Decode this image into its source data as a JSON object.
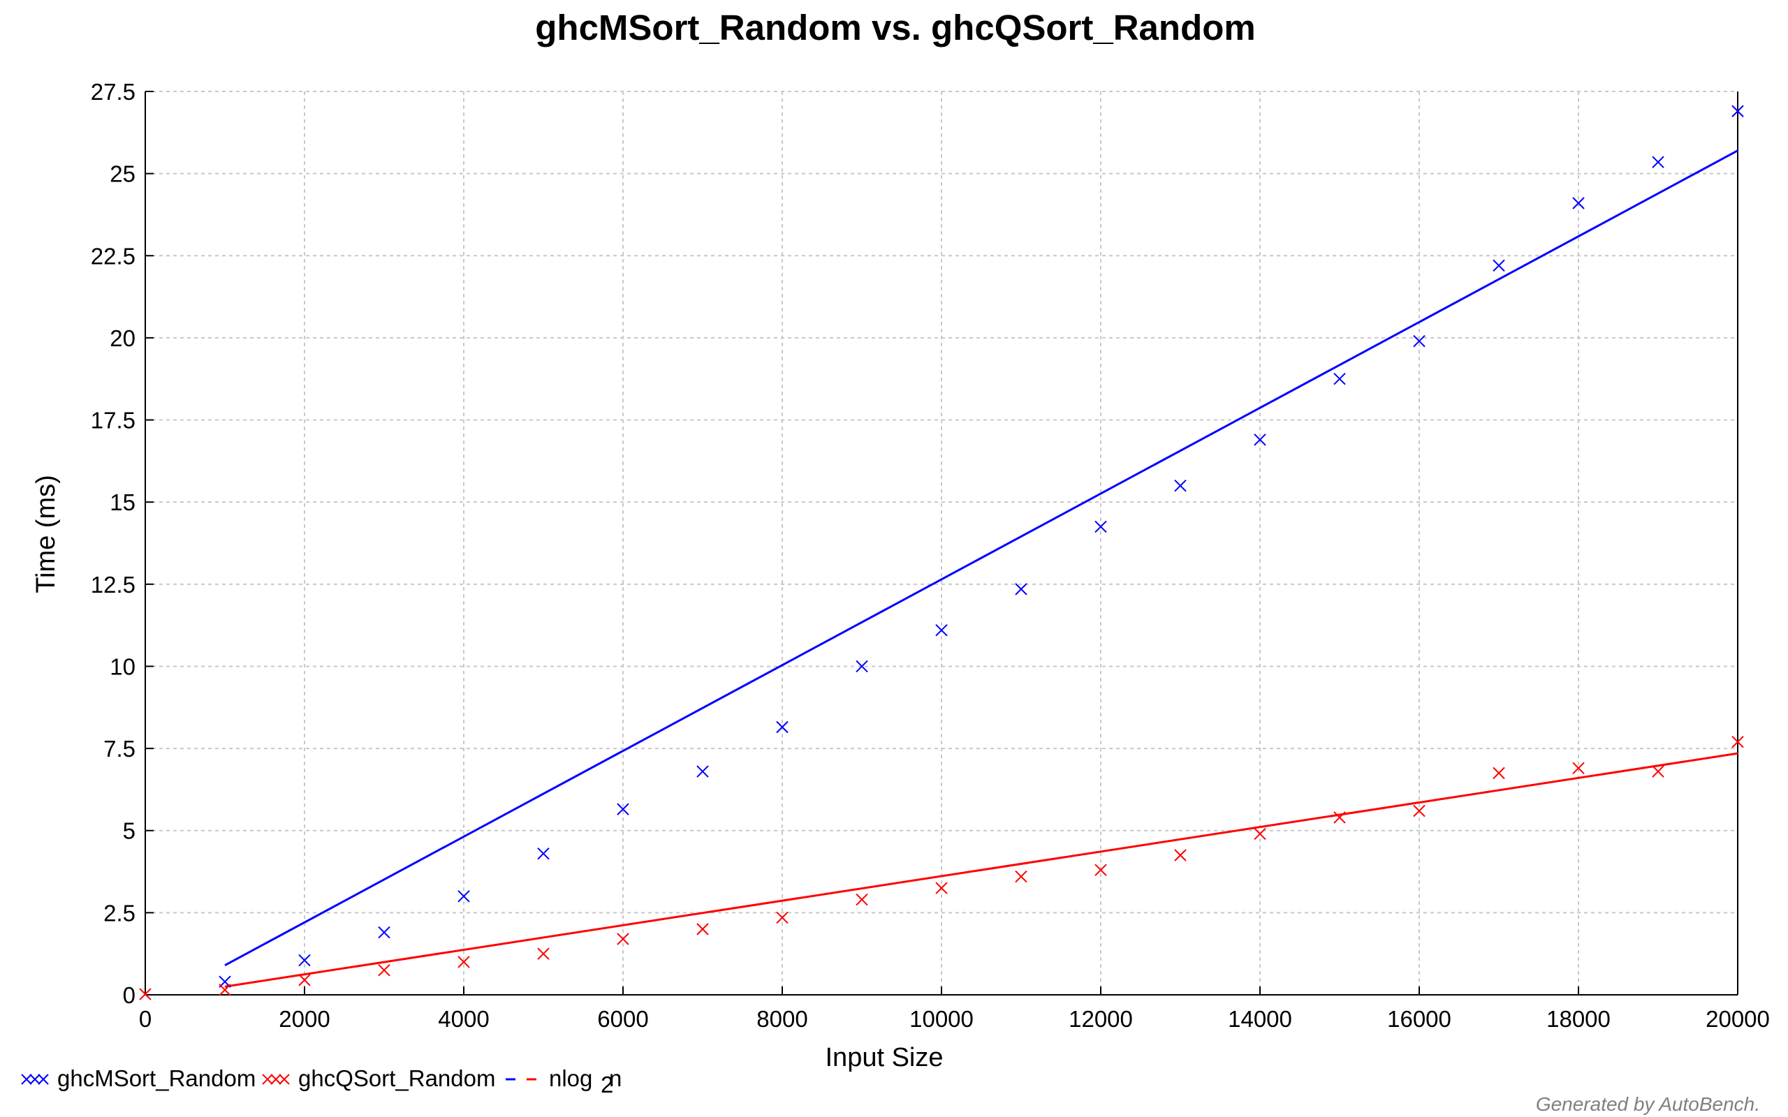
{
  "chart_data": {
    "type": "scatter",
    "title": "ghcMSort_Random vs. ghcQSort_Random",
    "xlabel": "Input Size",
    "ylabel": "Time (ms)",
    "xlim": [
      0,
      20000
    ],
    "ylim": [
      0,
      27.5
    ],
    "xticks": [
      0,
      2000,
      4000,
      6000,
      8000,
      10000,
      12000,
      14000,
      16000,
      18000,
      20000
    ],
    "xtick_labels": [
      "0",
      "2000",
      "4000",
      "6000",
      "8000",
      "10000",
      "12000",
      "14000",
      "16000",
      "18000",
      "20000"
    ],
    "yticks": [
      0,
      2.5,
      5,
      7.5,
      10,
      12.5,
      15,
      17.5,
      20,
      22.5,
      25,
      27.5
    ],
    "ytick_labels": [
      "0",
      "2.5",
      "5",
      "7.5",
      "10",
      "12.5",
      "15",
      "17.5",
      "20",
      "22.5",
      "25",
      "27.5"
    ],
    "grid": true,
    "legend_position": "bottom-left",
    "series": [
      {
        "name": "ghcMSort_Random",
        "color": "#0000ff",
        "marker": "x",
        "x": [
          1000,
          2000,
          3000,
          4000,
          5000,
          6000,
          7000,
          8000,
          9000,
          10000,
          11000,
          12000,
          13000,
          14000,
          15000,
          16000,
          17000,
          18000,
          19000,
          20000
        ],
        "y": [
          0.4,
          1.05,
          1.9,
          3.0,
          4.3,
          5.65,
          6.8,
          8.15,
          10.0,
          11.1,
          12.35,
          14.25,
          15.5,
          16.9,
          18.75,
          19.9,
          22.2,
          24.1,
          25.35,
          26.9
        ]
      },
      {
        "name": "ghcQSort_Random",
        "color": "#ff0000",
        "marker": "x",
        "x": [
          0,
          1000,
          2000,
          3000,
          4000,
          5000,
          6000,
          7000,
          8000,
          9000,
          10000,
          11000,
          12000,
          13000,
          14000,
          15000,
          16000,
          17000,
          18000,
          19000,
          20000
        ],
        "y": [
          0.02,
          0.15,
          0.45,
          0.75,
          1.0,
          1.25,
          1.7,
          2.0,
          2.35,
          2.9,
          3.25,
          3.6,
          3.8,
          4.25,
          4.9,
          5.4,
          5.6,
          6.75,
          6.9,
          6.8,
          7.7
        ]
      }
    ],
    "fits": [
      {
        "name": "nlog2n",
        "series": "ghcMSort_Random",
        "color": "#0000ff",
        "x": [
          1000,
          20000
        ],
        "y": [
          0.9,
          25.7
        ]
      },
      {
        "name": "nlog2n",
        "series": "ghcQSort_Random",
        "color": "#ff0000",
        "x": [
          1000,
          20000
        ],
        "y": [
          0.25,
          7.35
        ]
      }
    ],
    "legend": [
      {
        "label": "ghcMSort_Random",
        "kind": "marker",
        "color": "#0000ff"
      },
      {
        "label": "ghcQSort_Random",
        "kind": "marker",
        "color": "#ff0000"
      },
      {
        "label": "nlog",
        "subscript": "2",
        "suffix": "n",
        "kind": "line",
        "colors": [
          "#0000ff",
          "#ff0000"
        ]
      }
    ],
    "credit": "Generated by AutoBench."
  }
}
